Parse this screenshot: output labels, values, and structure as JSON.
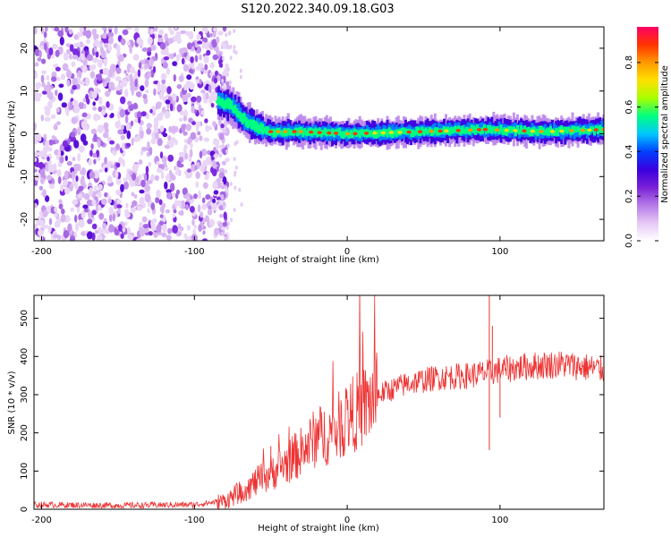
{
  "figure_title": "S120.2022.340.09.18.G03",
  "colors": {
    "snr_line": "#ee3333",
    "colormap": [
      "#ffffff",
      "#e6c8f5",
      "#b57ae8",
      "#7a1fd6",
      "#3a00e0",
      "#0040ff",
      "#00c8ff",
      "#00ff80",
      "#a8ff00",
      "#ffe000",
      "#ff9900",
      "#ff3300",
      "#ff0066"
    ]
  },
  "chart_data": [
    {
      "type": "heatmap",
      "title": "",
      "xlabel": "Height of straight line (km)",
      "ylabel": "Frequency (Hz)",
      "xlim": [
        -205,
        168
      ],
      "ylim": [
        -25,
        25
      ],
      "x_ticks": [
        -200,
        -100,
        0,
        100
      ],
      "y_ticks": [
        -20,
        -10,
        0,
        10,
        20
      ],
      "x_tick_labels": [
        "-200",
        "-100",
        "0",
        "100"
      ],
      "y_tick_labels": [
        "-20",
        "-10",
        "0",
        "10",
        "20"
      ],
      "colorbar": {
        "label": "Normalized spectral amplitude",
        "range": [
          0,
          0.96
        ],
        "ticks": [
          0.0,
          0.2,
          0.4,
          0.6,
          0.8
        ],
        "tick_labels": [
          "0.0",
          "0.2",
          "0.4",
          "0.6",
          "0.8"
        ]
      },
      "features": {
        "noise_region_x": [
          -205,
          -83
        ],
        "ridge": [
          {
            "x": -85,
            "y": 7.5
          },
          {
            "x": -80,
            "y": 7.0
          },
          {
            "x": -75,
            "y": 6.0
          },
          {
            "x": -70,
            "y": 4.0
          },
          {
            "x": -65,
            "y": 2.5
          },
          {
            "x": -60,
            "y": 1.5
          },
          {
            "x": -50,
            "y": 0.5
          },
          {
            "x": -30,
            "y": 0.5
          },
          {
            "x": 0,
            "y": 0.0
          },
          {
            "x": 50,
            "y": 0.5
          },
          {
            "x": 90,
            "y": 1.0
          },
          {
            "x": 130,
            "y": 0.5
          },
          {
            "x": 168,
            "y": 1.0
          }
        ]
      }
    },
    {
      "type": "line",
      "title": "",
      "xlabel": "Height of straight line (km)",
      "ylabel": "SNR (10 * v/v)",
      "xlim": [
        -205,
        168
      ],
      "ylim": [
        0,
        560
      ],
      "x_ticks": [
        -200,
        -100,
        0,
        100
      ],
      "y_ticks": [
        0,
        100,
        200,
        300,
        400,
        500
      ],
      "x_tick_labels": [
        "-200",
        "-100",
        "0",
        "100"
      ],
      "y_tick_labels": [
        "0",
        "100",
        "200",
        "300",
        "400",
        "500"
      ],
      "series": [
        {
          "trend": {
            "x": [
              -205,
              -150,
              -100,
              -80,
              -70,
              -60,
              -50,
              -40,
              -30,
              -20,
              -10,
              0,
              10,
              20,
              30,
              40,
              60,
              80,
              95,
              100,
              120,
              140,
              160,
              168
            ],
            "y": [
              12,
              10,
              12,
              22,
              45,
              70,
              95,
              120,
              150,
              190,
              200,
              240,
              265,
              300,
              315,
              330,
              345,
              350,
              360,
              365,
              375,
              380,
              370,
              365
            ]
          },
          "spikes": [
            {
              "x": -50,
              "y": 165
            },
            {
              "x": -36,
              "y": 170
            },
            {
              "x": 93,
              "y": 560
            },
            {
              "x": 95,
              "y": 480
            },
            {
              "x": 93,
              "y": 155
            },
            {
              "x": 100,
              "y": 240
            }
          ]
        }
      ]
    }
  ]
}
